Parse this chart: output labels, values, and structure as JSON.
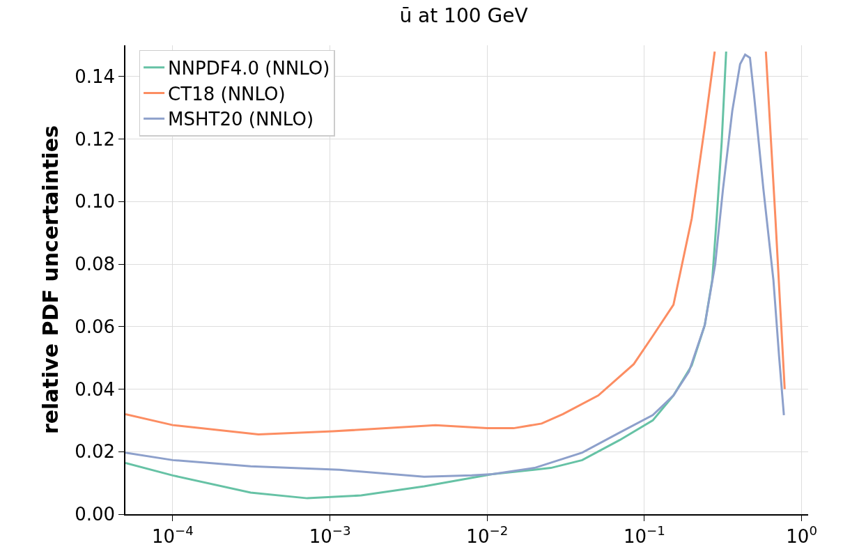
{
  "chart_data": {
    "type": "line",
    "title": "ū at 100 GeV",
    "ylabel": "relative PDF uncertainties",
    "log": "x",
    "grid": true,
    "legend": "top left",
    "line_style": "solid",
    "marker": "none",
    "xlim": [
      5e-05,
      1.1
    ],
    "ylim": [
      0,
      0.15
    ],
    "xticks": [
      {
        "value": 0.0001,
        "label": "10$^{−4}$"
      },
      {
        "value": 0.001,
        "label": "10$^{−3}$"
      },
      {
        "value": 0.01,
        "label": "10$^{−2}$"
      },
      {
        "value": 0.1,
        "label": "10$^{−1}$"
      },
      {
        "value": 1,
        "label": "10$^{0}$"
      }
    ],
    "yticks": [
      {
        "value": 0,
        "label": "0.00"
      },
      0.02,
      0.04,
      0.06,
      0.08,
      {
        "value": 0.1,
        "label": "0.10"
      },
      0.12,
      0.14
    ],
    "series": [
      {
        "name": "NNPDF4.0 (NNLO)",
        "color": "#66c2a5",
        "x": [
          5e-05,
          0.0001,
          0.000313,
          0.000718,
          0.00158,
          0.00397,
          0.0108,
          0.0254,
          0.0402,
          0.0695,
          0.113,
          0.153,
          0.2,
          0.242,
          0.27,
          0.288,
          0.31,
          0.331
        ],
        "values": [
          0.0164,
          0.0124,
          0.0069,
          0.0051,
          0.006,
          0.0089,
          0.0128,
          0.0148,
          0.0173,
          0.0237,
          0.03,
          0.038,
          0.0476,
          0.0605,
          0.075,
          0.0946,
          0.119,
          0.148
        ]
      },
      {
        "name": "CT18 (NNLO)",
        "color": "#fc8d62",
        "x": [
          5e-05,
          0.0001,
          0.000351,
          0.00104,
          0.00469,
          0.01,
          0.0147,
          0.0222,
          0.0303,
          0.0509,
          0.0855,
          0.113,
          0.153,
          0.2,
          0.242,
          0.28,
          0.4,
          0.592,
          0.681,
          0.78
        ],
        "values": [
          0.032,
          0.0285,
          0.0255,
          0.0265,
          0.0285,
          0.0275,
          0.0275,
          0.029,
          0.032,
          0.038,
          0.048,
          0.057,
          0.067,
          0.0946,
          0.124,
          0.148,
          null,
          0.148,
          0.0946,
          0.04
        ]
      },
      {
        "name": "MSHT20 (NNLO)",
        "color": "#8da0cb",
        "x": [
          5e-05,
          0.0001,
          0.000313,
          0.00115,
          0.00397,
          0.00796,
          0.0108,
          0.02,
          0.0402,
          0.0695,
          0.113,
          0.153,
          0.192,
          0.242,
          0.282,
          0.316,
          0.362,
          0.406,
          0.437,
          0.469,
          0.499,
          0.571,
          0.661,
          0.718,
          0.771
        ],
        "values": [
          0.0197,
          0.0173,
          0.0153,
          0.0142,
          0.012,
          0.0124,
          0.0128,
          0.0148,
          0.0197,
          0.0261,
          0.0317,
          0.038,
          0.0456,
          0.0605,
          0.08,
          0.104,
          0.129,
          0.144,
          0.147,
          0.146,
          0.1336,
          0.104,
          0.075,
          0.0507,
          0.0317
        ]
      }
    ]
  }
}
